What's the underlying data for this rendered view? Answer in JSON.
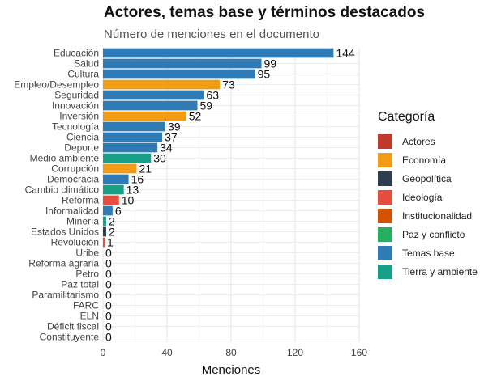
{
  "chart_data": {
    "type": "bar",
    "orientation": "horizontal",
    "title": "Actores, temas base y términos destacados",
    "subtitle": "Número de menciones en el documento",
    "xlabel": "Menciones",
    "ylabel": "",
    "xlim": [
      0,
      160
    ],
    "xticks": [
      0,
      40,
      80,
      120,
      160
    ],
    "grid": true,
    "legend_title": "Categoría",
    "legend_placement": "right",
    "legend": [
      {
        "name": "Actores",
        "color": "#c0392b"
      },
      {
        "name": "Economía",
        "color": "#f39c12"
      },
      {
        "name": "Geopolítica",
        "color": "#2c3e50"
      },
      {
        "name": "Ideología",
        "color": "#e74c3c"
      },
      {
        "name": "Institucionalidad",
        "color": "#d35400"
      },
      {
        "name": "Paz y conflicto",
        "color": "#27ae60"
      },
      {
        "name": "Temas base",
        "color": "#2e7bb6"
      },
      {
        "name": "Tierra y ambiente",
        "color": "#16a085"
      }
    ],
    "bars": [
      {
        "label": "Educación",
        "value": 144,
        "category": "Temas base"
      },
      {
        "label": "Salud",
        "value": 99,
        "category": "Temas base"
      },
      {
        "label": "Cultura",
        "value": 95,
        "category": "Temas base"
      },
      {
        "label": "Empleo/Desempleo",
        "value": 73,
        "category": "Economía"
      },
      {
        "label": "Seguridad",
        "value": 63,
        "category": "Temas base"
      },
      {
        "label": "Innovación",
        "value": 59,
        "category": "Temas base"
      },
      {
        "label": "Inversión",
        "value": 52,
        "category": "Economía"
      },
      {
        "label": "Tecnología",
        "value": 39,
        "category": "Temas base"
      },
      {
        "label": "Ciencia",
        "value": 37,
        "category": "Temas base"
      },
      {
        "label": "Deporte",
        "value": 34,
        "category": "Temas base"
      },
      {
        "label": "Medio ambiente",
        "value": 30,
        "category": "Tierra y ambiente"
      },
      {
        "label": "Corrupción",
        "value": 21,
        "category": "Economía"
      },
      {
        "label": "Democracia",
        "value": 16,
        "category": "Temas base"
      },
      {
        "label": "Cambio climático",
        "value": 13,
        "category": "Tierra y ambiente"
      },
      {
        "label": "Reforma",
        "value": 10,
        "category": "Ideología"
      },
      {
        "label": "Informalidad",
        "value": 6,
        "category": "Temas base"
      },
      {
        "label": "Minería",
        "value": 2,
        "category": "Tierra y ambiente"
      },
      {
        "label": "Estados Unidos",
        "value": 2,
        "category": "Geopolítica"
      },
      {
        "label": "Revolución",
        "value": 1,
        "category": "Ideología"
      },
      {
        "label": "Uribe",
        "value": 0,
        "category": "Actores"
      },
      {
        "label": "Reforma agraria",
        "value": 0,
        "category": "Tierra y ambiente"
      },
      {
        "label": "Petro",
        "value": 0,
        "category": "Actores"
      },
      {
        "label": "Paz total",
        "value": 0,
        "category": "Paz y conflicto"
      },
      {
        "label": "Paramilitarismo",
        "value": 0,
        "category": "Paz y conflicto"
      },
      {
        "label": "FARC",
        "value": 0,
        "category": "Paz y conflicto"
      },
      {
        "label": "ELN",
        "value": 0,
        "category": "Paz y conflicto"
      },
      {
        "label": "Déficit fiscal",
        "value": 0,
        "category": "Economía"
      },
      {
        "label": "Constituyente",
        "value": 0,
        "category": "Institucionalidad"
      }
    ]
  }
}
